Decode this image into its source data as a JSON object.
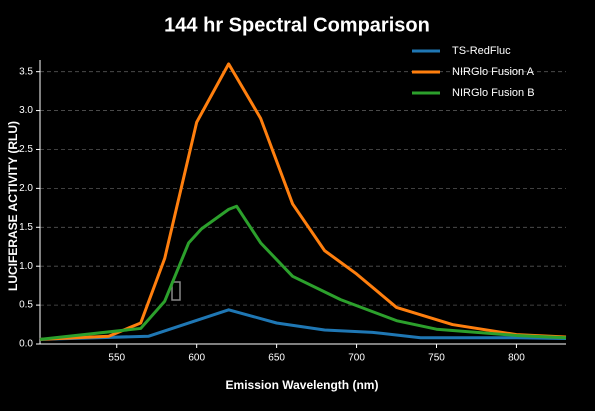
{
  "chart_data": {
    "type": "line",
    "title": "144 hr Spectral Comparison",
    "x_label": "Emission Wavelength (nm)",
    "y_label": "LUCIFERASE ACTIVITY (RLU)",
    "xlim": [
      502,
      831
    ],
    "xticks": [
      550,
      600,
      650,
      700,
      750,
      800
    ],
    "ylim": [
      0,
      3.65
    ],
    "yticks": [
      {
        "value": 0,
        "label": "0.0"
      },
      0.5,
      {
        "value": 1,
        "label": "1.0"
      },
      1.5,
      {
        "value": 2,
        "label": "2.0"
      },
      2.5,
      {
        "value": 3,
        "label": "3.0"
      },
      3.5
    ],
    "grid": true,
    "legend": "upper right",
    "series": [
      {
        "name": "TS-RedFluc",
        "color": "#1f77b4",
        "x": [
          502,
          570,
          620,
          650,
          680,
          710,
          740,
          800,
          831
        ],
        "values": [
          0.06,
          0.1,
          0.44,
          0.27,
          0.18,
          0.15,
          0.08,
          0.08,
          0.07
        ]
      },
      {
        "name": "NIRGlo Fusion A",
        "color": "#ff7f0e",
        "x": [
          502,
          545,
          565,
          580,
          600,
          620,
          640,
          660,
          680,
          700,
          725,
          760,
          800,
          831
        ],
        "values": [
          0.06,
          0.1,
          0.27,
          1.1,
          2.85,
          3.6,
          2.9,
          1.8,
          1.2,
          0.9,
          0.47,
          0.25,
          0.12,
          0.09
        ]
      },
      {
        "name": "NIRGlo Fusion B",
        "color": "#2ca02c",
        "x": [
          502,
          565,
          580,
          595,
          603,
          620,
          625,
          640,
          660,
          690,
          725,
          750,
          800,
          831
        ],
        "values": [
          0.06,
          0.2,
          0.55,
          1.3,
          1.48,
          1.73,
          1.77,
          1.3,
          0.87,
          0.57,
          0.3,
          0.19,
          0.11,
          0.08
        ]
      }
    ]
  }
}
